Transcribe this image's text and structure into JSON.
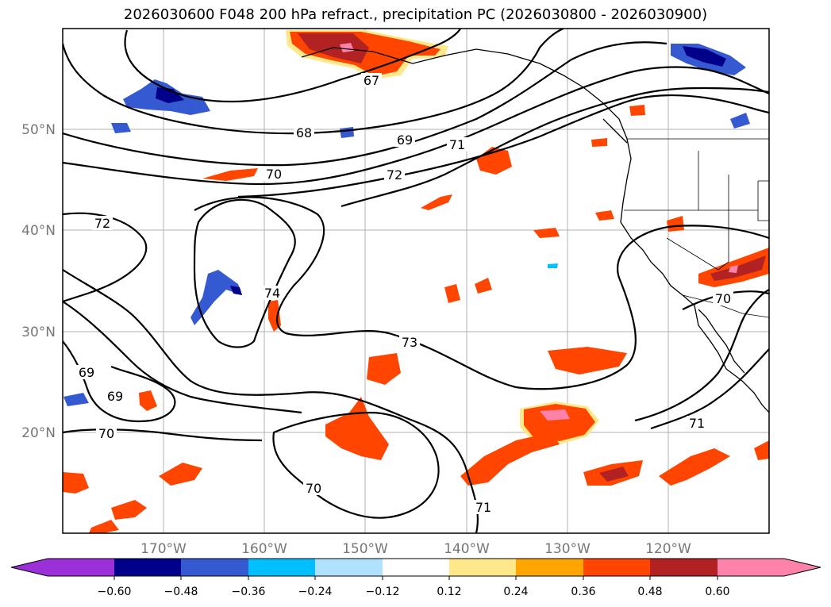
{
  "title": "2026030600 F048 200 hPa refract., precipitation PC (2026030800 - 2026030900)",
  "lat_labels": [
    "50°N",
    "40°N",
    "30°N",
    "20°N"
  ],
  "lon_labels": [
    "170°W",
    "160°W",
    "150°W",
    "140°W",
    "130°W",
    "120°W"
  ],
  "contour_labels": [
    {
      "text": "67"
    },
    {
      "text": "68"
    },
    {
      "text": "69"
    },
    {
      "text": "71"
    },
    {
      "text": "70"
    },
    {
      "text": "72"
    },
    {
      "text": "72"
    },
    {
      "text": "74"
    },
    {
      "text": "73"
    },
    {
      "text": "69"
    },
    {
      "text": "69"
    },
    {
      "text": "70"
    },
    {
      "text": "70"
    },
    {
      "text": "71"
    },
    {
      "text": "71"
    },
    {
      "text": "70"
    }
  ],
  "colorbar": {
    "ticks": [
      "−0.60",
      "−0.48",
      "−0.36",
      "−0.24",
      "−0.12",
      "0.12",
      "0.24",
      "0.36",
      "0.48",
      "0.60"
    ],
    "colors": [
      "#9b30d9",
      "#00008b",
      "#3559d1",
      "#00bfff",
      "#b0e2ff",
      "#ffffff",
      "#ffe88a",
      "#ffa500",
      "#ff4500",
      "#b22222",
      "#ff82ab"
    ]
  },
  "chart_data": {
    "type": "filled-contour-map",
    "title": "2026030600 F048 200 hPa refract., precipitation PC (2026030800 - 2026030900)",
    "lat_range": [
      10,
      60
    ],
    "lon_range": [
      -180,
      -110
    ],
    "lat_ticks": [
      50,
      40,
      30,
      20
    ],
    "lon_ticks": [
      -170,
      -160,
      -150,
      -140,
      -130,
      -120
    ],
    "contour_levels": [
      67,
      68,
      69,
      70,
      71,
      72,
      73,
      74
    ],
    "colorbar_levels": [
      -0.6,
      -0.48,
      -0.36,
      -0.24,
      -0.12,
      0.12,
      0.24,
      0.36,
      0.48,
      0.6
    ]
  }
}
